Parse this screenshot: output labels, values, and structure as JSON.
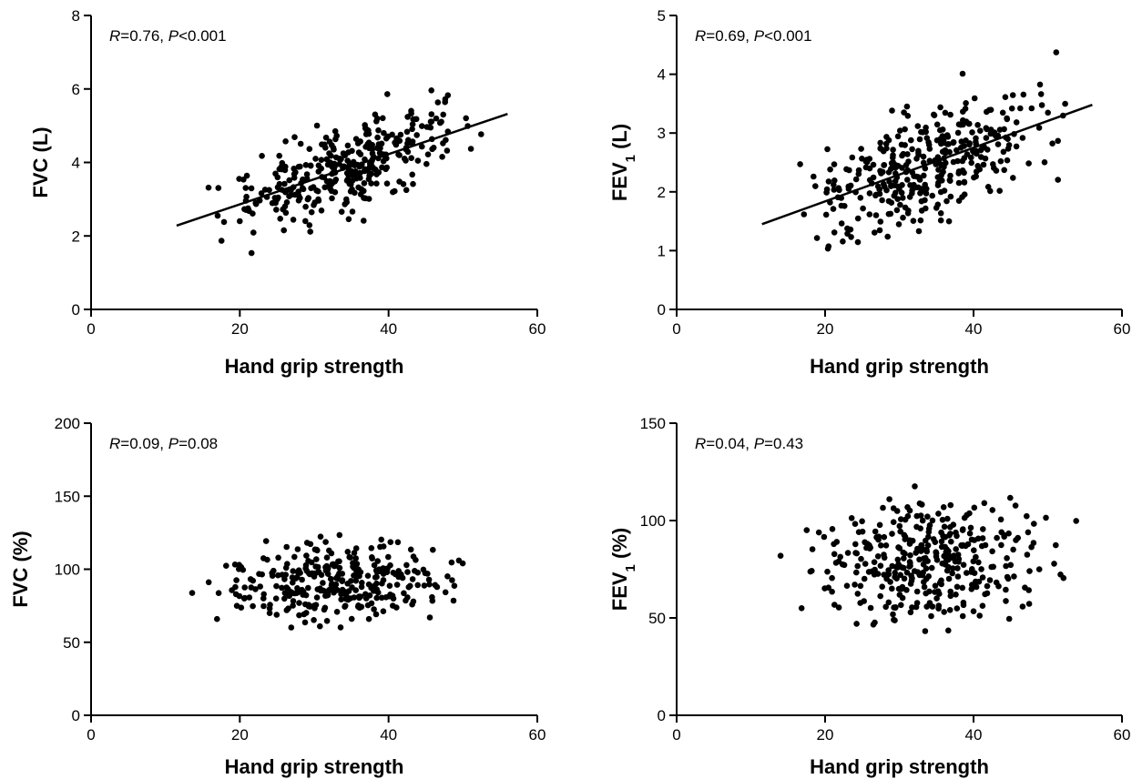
{
  "chart_data": [
    {
      "type": "scatter",
      "xlabel": "Hand grip strength",
      "ylabel": "FVC (L)",
      "ylabel_sub": "",
      "ylabel_tail": "",
      "annotation": {
        "r_label": "R",
        "r_value": "=0.76, ",
        "p_label": "P",
        "p_value": "<0.001"
      },
      "xlim": [
        0,
        60
      ],
      "ylim": [
        0,
        8
      ],
      "xticks": [
        "0",
        "20",
        "40",
        "60"
      ],
      "yticks": [
        "0",
        "2",
        "4",
        "6",
        "8"
      ],
      "regression": {
        "x": [
          11.5,
          56
        ],
        "y": [
          2.28,
          5.32
        ]
      },
      "seed": 11,
      "points": {
        "n": 340,
        "slope": 0.0685,
        "intercept": 1.5,
        "sd": 0.62,
        "ymin": 1.2,
        "ymax": 6.7
      },
      "marker_color": "#000000"
    },
    {
      "type": "scatter",
      "xlabel": "Hand grip strength",
      "ylabel": "FEV",
      "ylabel_sub": "1",
      "ylabel_tail": " (L)",
      "annotation": {
        "r_label": "R",
        "r_value": "=0.69, ",
        "p_label": "P",
        "p_value": "<0.001"
      },
      "xlim": [
        0,
        60
      ],
      "ylim": [
        0,
        5
      ],
      "xticks": [
        "0",
        "20",
        "40",
        "60"
      ],
      "yticks": [
        "0",
        "1",
        "2",
        "3",
        "4",
        "5"
      ],
      "regression": {
        "x": [
          11.5,
          56
        ],
        "y": [
          1.45,
          3.48
        ]
      },
      "seed": 23,
      "points": {
        "n": 360,
        "slope": 0.0456,
        "intercept": 0.93,
        "sd": 0.48,
        "ymin": 0.75,
        "ymax": 4.5
      },
      "marker_color": "#000000"
    },
    {
      "type": "scatter",
      "xlabel": "Hand grip strength",
      "ylabel": "FVC (%)",
      "ylabel_sub": "",
      "ylabel_tail": "",
      "annotation": {
        "r_label": "R",
        "r_value": "=0.09, ",
        "p_label": "P",
        "p_value": "=0.08"
      },
      "xlim": [
        0,
        60
      ],
      "ylim": [
        0,
        200
      ],
      "xticks": [
        "0",
        "20",
        "40",
        "60"
      ],
      "yticks": [
        "0",
        "50",
        "100",
        "150",
        "200"
      ],
      "regression": null,
      "seed": 37,
      "points": {
        "n": 320,
        "slope": 0.08,
        "intercept": 88,
        "sd": 14,
        "ymin": 50,
        "ymax": 154
      },
      "marker_color": "#000000"
    },
    {
      "type": "scatter",
      "xlabel": "Hand grip strength",
      "ylabel": "FEV",
      "ylabel_sub": "1",
      "ylabel_tail": " (%)",
      "annotation": {
        "r_label": "R",
        "r_value": "=0.04, ",
        "p_label": "P",
        "p_value": "=0.43"
      },
      "xlim": [
        0,
        60
      ],
      "ylim": [
        0,
        150
      ],
      "xticks": [
        "0",
        "20",
        "40",
        "60"
      ],
      "yticks": [
        "0",
        "50",
        "100",
        "150"
      ],
      "regression": null,
      "seed": 53,
      "points": {
        "n": 360,
        "slope": 0.05,
        "intercept": 79,
        "sd": 16,
        "ymin": 32,
        "ymax": 121
      },
      "marker_color": "#000000"
    }
  ]
}
